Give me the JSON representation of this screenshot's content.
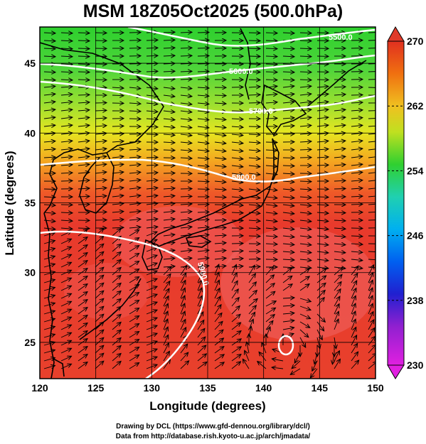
{
  "title": "MSM 18Z05Oct2025 (500.0hPa)",
  "map": {
    "xlabel": "Longitude (degrees)",
    "ylabel": "Latitude  (degrees)",
    "xlim": [
      120,
      150
    ],
    "ylim": [
      22.4,
      47.6
    ],
    "xticks": [
      "120",
      "125",
      "130",
      "135",
      "140",
      "145",
      "150"
    ],
    "yticks": [
      "25",
      "30",
      "35",
      "40",
      "45"
    ],
    "grid": true
  },
  "colorbar": {
    "ticks": [
      "230",
      "238",
      "246",
      "254",
      "262",
      "270"
    ],
    "range": [
      230,
      270
    ],
    "colors": [
      "#e020e0",
      "#2020d0",
      "#00a0f0",
      "#20d0b0",
      "#30d030",
      "#f0e020",
      "#f07010",
      "#e03020"
    ]
  },
  "contours": [
    {
      "label": "5500.0"
    },
    {
      "label": "5600.0"
    },
    {
      "label": "5700.0"
    },
    {
      "label": "5800.0"
    },
    {
      "label": "5900.0"
    }
  ],
  "credits": {
    "line1": "Drawing by DCL (https://www.gfd-dennou.org/library/dcl/)",
    "line2": "Data from http://database.rish.kyoto-u.ac.jp/arch/jmadata/"
  }
}
